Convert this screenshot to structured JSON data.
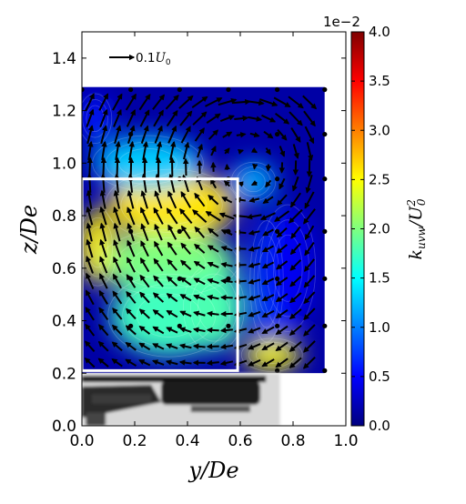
{
  "chart_data": {
    "type": "contour-quiver",
    "xlabel": "y/De",
    "ylabel": "z/De",
    "xlim": [
      0.0,
      1.0
    ],
    "ylim": [
      0.0,
      1.5
    ],
    "x_ticks": [
      "0.0",
      "0.2",
      "0.4",
      "0.6",
      "0.8",
      "1.0"
    ],
    "y_ticks": [
      "0.0",
      "0.2",
      "0.4",
      "0.6",
      "0.8",
      "1.0",
      "1.2",
      "1.4"
    ],
    "quiver_key": {
      "label": "0.1U0",
      "label_main": "0.1",
      "label_italic": "U",
      "label_sub": "0"
    },
    "colorbar": {
      "label": "k_uvw/U0^2",
      "label_main": "k",
      "label_sub": "uvw",
      "label_den": "U",
      "label_sup": "2",
      "label_den_sub": "0",
      "range": [
        0.0,
        4.0
      ],
      "ticks": [
        "0.0",
        "0.5",
        "1.0",
        "1.5",
        "2.0",
        "2.5",
        "3.0",
        "3.5",
        "4.0"
      ],
      "offset_text": "1e−2",
      "colormap": [
        "#00007f",
        "#0000ff",
        "#007fff",
        "#00ffff",
        "#7fff7f",
        "#ffff00",
        "#ff7f00",
        "#ff0000",
        "#7f0000"
      ]
    },
    "measurement_domain": {
      "y": [
        0.0,
        0.92
      ],
      "z": [
        0.2,
        1.29
      ]
    },
    "box_outline": {
      "y": [
        0.0,
        0.59
      ],
      "z": [
        0.21,
        0.94
      ],
      "color": "#ffffff"
    },
    "field_blobs": [
      {
        "y": 0.34,
        "z": 0.84,
        "ry": 0.24,
        "rz": 0.13,
        "value": 2.6
      },
      {
        "y": 0.06,
        "z": 0.68,
        "ry": 0.07,
        "rz": 0.14,
        "value": 2.55
      },
      {
        "y": 0.33,
        "z": 0.62,
        "ry": 0.25,
        "rz": 0.12,
        "value": 2.0
      },
      {
        "y": 0.33,
        "z": 0.42,
        "ry": 0.22,
        "rz": 0.15,
        "value": 1.75
      },
      {
        "y": 0.5,
        "z": 0.45,
        "ry": 0.11,
        "rz": 0.16,
        "value": 1.8
      },
      {
        "y": 0.72,
        "z": 0.27,
        "ry": 0.11,
        "rz": 0.06,
        "value": 2.5
      },
      {
        "y": 0.25,
        "z": 1.0,
        "ry": 0.2,
        "rz": 0.1,
        "value": 1.3
      },
      {
        "y": 0.65,
        "z": 0.93,
        "ry": 0.08,
        "rz": 0.07,
        "value": 1.2
      },
      {
        "y": 0.7,
        "z": 0.55,
        "ry": 0.06,
        "rz": 0.22,
        "value": 0.8
      },
      {
        "y": 0.78,
        "z": 0.6,
        "ry": 0.1,
        "rz": 0.23,
        "value": 0.45
      },
      {
        "y": 0.05,
        "z": 1.17,
        "ry": 0.06,
        "rz": 0.09,
        "value": 0.6
      }
    ],
    "dots": [
      [
        0.0,
        1.28
      ],
      [
        0.185,
        1.28
      ],
      [
        0.37,
        1.28
      ],
      [
        0.555,
        1.28
      ],
      [
        0.74,
        1.28
      ],
      [
        0.92,
        1.28
      ],
      [
        0.185,
        1.11
      ],
      [
        0.74,
        1.11
      ],
      [
        0.92,
        1.11
      ],
      [
        0.0,
        0.94
      ],
      [
        0.185,
        0.94
      ],
      [
        0.37,
        0.94
      ],
      [
        0.555,
        0.94
      ],
      [
        0.74,
        0.94
      ],
      [
        0.92,
        0.94
      ],
      [
        0.185,
        0.74
      ],
      [
        0.37,
        0.74
      ],
      [
        0.555,
        0.74
      ],
      [
        0.74,
        0.74
      ],
      [
        0.92,
        0.74
      ],
      [
        0.185,
        0.56
      ],
      [
        0.37,
        0.56
      ],
      [
        0.555,
        0.56
      ],
      [
        0.74,
        0.56
      ],
      [
        0.92,
        0.56
      ],
      [
        0.185,
        0.38
      ],
      [
        0.37,
        0.38
      ],
      [
        0.555,
        0.38
      ],
      [
        0.74,
        0.38
      ],
      [
        0.92,
        0.38
      ],
      [
        0.74,
        0.21
      ],
      [
        0.92,
        0.21
      ]
    ],
    "vehicle_silhouette": {
      "y": [
        0.0,
        0.75
      ],
      "z": [
        0.0,
        0.2
      ]
    }
  }
}
